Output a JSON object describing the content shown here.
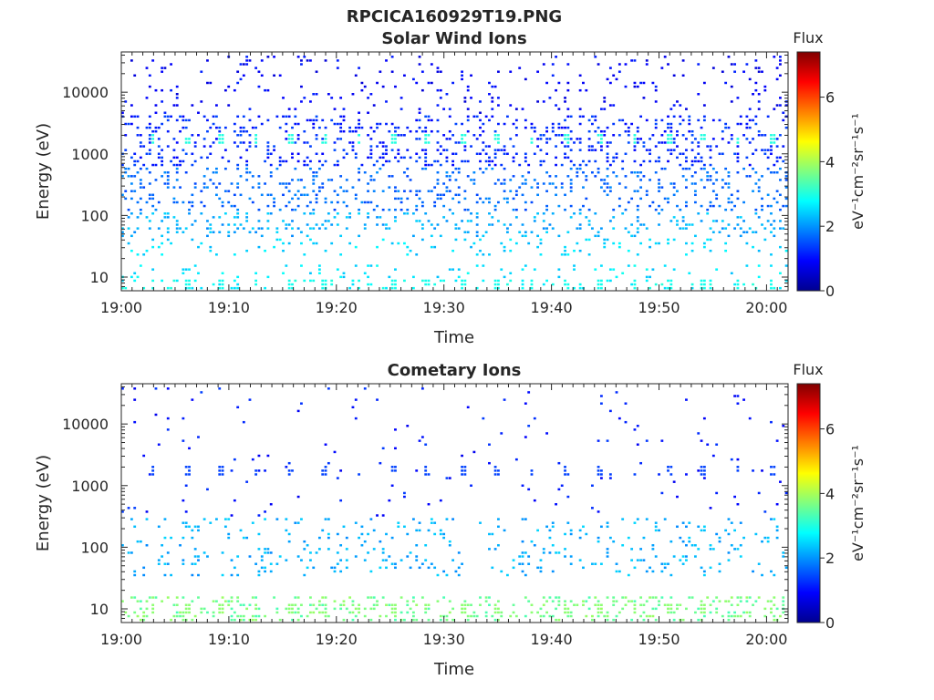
{
  "figure_title": "RPCICA160929T19.PNG",
  "colors": {
    "frame": "#262626",
    "background": "#ffffff"
  },
  "colorbar": {
    "title": "Flux",
    "label": "eV⁻¹cm⁻²sr⁻¹s⁻¹",
    "range": [
      0,
      7.4
    ],
    "ticks": [
      "0",
      "2",
      "4",
      "6"
    ],
    "colormap": "jet"
  },
  "chart_data": [
    {
      "type": "heatmap",
      "title": "Solar Wind Ions",
      "xlabel": "Time",
      "ylabel": "Energy (eV)",
      "x_ticks": [
        "19:00",
        "19:10",
        "19:20",
        "19:30",
        "19:40",
        "19:50",
        "20:00"
      ],
      "y_ticks": [
        "10",
        "100",
        "1000",
        "10000"
      ],
      "xlim": [
        "19:00",
        "20:02"
      ],
      "ylim": [
        6,
        45000
      ],
      "y_scale": "log",
      "colorbar_title": "Flux",
      "bands": [
        {
          "energy_range_eV": [
            6,
            9
          ],
          "flux": 2.8,
          "density": 0.12,
          "note": "low-energy bursts"
        },
        {
          "energy_range_eV": [
            9,
            15
          ],
          "flux": 2.6,
          "density": 0.08
        },
        {
          "energy_range_eV": [
            20,
            40
          ],
          "flux": 2.5,
          "density": 0.1
        },
        {
          "energy_range_eV": [
            40,
            120
          ],
          "flux": 2.2,
          "density": 0.18
        },
        {
          "energy_range_eV": [
            120,
            600
          ],
          "flux": 1.7,
          "density": 0.2
        },
        {
          "energy_range_eV": [
            600,
            4000
          ],
          "flux": 1.2,
          "density": 0.22
        },
        {
          "energy_range_eV": [
            4000,
            40000
          ],
          "flux": 0.9,
          "density": 0.08
        }
      ],
      "periodic_features": [
        {
          "energy_eV": 1600,
          "flux": 3.0,
          "period_min": 3.2,
          "note": "repeating patches near 1600 eV"
        },
        {
          "energy_eV": 7.5,
          "flux": 2.9,
          "period_min": 3.2
        }
      ]
    },
    {
      "type": "heatmap",
      "title": "Cometary Ions",
      "xlabel": "Time",
      "ylabel": "Energy (eV)",
      "x_ticks": [
        "19:00",
        "19:10",
        "19:20",
        "19:30",
        "19:40",
        "19:50",
        "20:00"
      ],
      "y_ticks": [
        "10",
        "100",
        "1000",
        "10000"
      ],
      "xlim": [
        "19:00",
        "20:02"
      ],
      "ylim": [
        6,
        45000
      ],
      "y_scale": "log",
      "colorbar_title": "Flux",
      "bands": [
        {
          "energy_range_eV": [
            6,
            16
          ],
          "flux": 3.6,
          "density": 0.22,
          "note": "bright low-energy bursts"
        },
        {
          "energy_range_eV": [
            30,
            300
          ],
          "flux": 2.2,
          "density": 0.1
        },
        {
          "energy_range_eV": [
            300,
            40000
          ],
          "flux": 1.1,
          "density": 0.02
        }
      ],
      "periodic_features": [
        {
          "energy_eV": 1600,
          "flux": 1.4,
          "period_min": 3.2,
          "note": "repeating patches near 1600 eV"
        },
        {
          "energy_eV": 10,
          "flux": 3.8,
          "period_min": 3.2
        }
      ]
    }
  ]
}
